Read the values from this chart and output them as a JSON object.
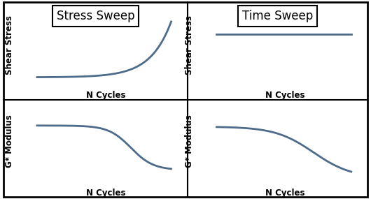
{
  "title_left": "Stress Sweep",
  "title_right": "Time Sweep",
  "ylabel_top": "Shear Stress",
  "ylabel_bottom": "G* Modulus",
  "xlabel": "N Cycles",
  "curve_color": "#4d6b8a",
  "curve_linewidth": 2.0,
  "background_color": "#ffffff",
  "border_color": "#000000",
  "title_fontsize": 12,
  "label_fontsize": 8.5,
  "arrow_color": "#000000",
  "outer_border_lw": 2.0,
  "divider_lw": 1.5
}
